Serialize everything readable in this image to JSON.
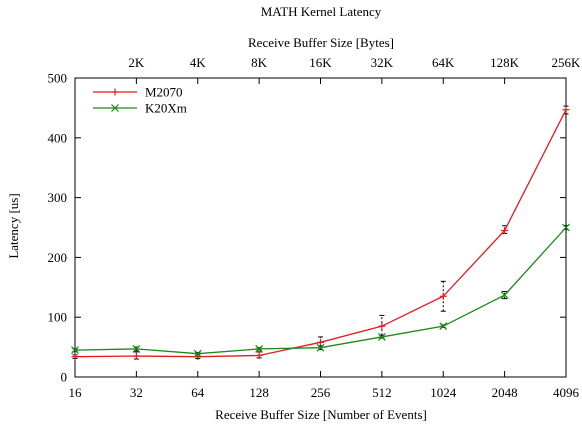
{
  "chart_data": {
    "type": "line",
    "title": "MATH Kernel Latency",
    "xlabel": "Receive Buffer Size [Number of Events]",
    "x2label": "Receive Buffer Size [Bytes]",
    "ylabel": "Latency [us]",
    "x_scale": "log2",
    "ylim": [
      0,
      500
    ],
    "y_ticks": [
      0,
      100,
      200,
      300,
      400,
      500
    ],
    "categories": [
      "16",
      "32",
      "64",
      "128",
      "256",
      "512",
      "1024",
      "2048",
      "4096"
    ],
    "x": [
      16,
      32,
      64,
      128,
      256,
      512,
      1024,
      2048,
      4096
    ],
    "top_ticks": [
      {
        "x": 32,
        "label": "2K"
      },
      {
        "x": 64,
        "label": "4K"
      },
      {
        "x": 128,
        "label": "8K"
      },
      {
        "x": 256,
        "label": "16K"
      },
      {
        "x": 512,
        "label": "32K"
      },
      {
        "x": 1024,
        "label": "64K"
      },
      {
        "x": 2048,
        "label": "128K"
      },
      {
        "x": 4096,
        "label": "256K"
      }
    ],
    "legend_position": "top-left",
    "grid": false,
    "series": [
      {
        "name": "M2070",
        "color": "#e41a1c",
        "marker": "plus",
        "values": [
          34,
          35,
          34,
          36,
          58,
          85,
          135,
          245,
          447
        ],
        "err_low": [
          31,
          30,
          31,
          32,
          52,
          70,
          110,
          240,
          440
        ],
        "err_high": [
          37,
          42,
          39,
          42,
          67,
          103,
          160,
          253,
          453
        ]
      },
      {
        "name": "K20Xm",
        "color": "#1a8a1a",
        "marker": "x",
        "values": [
          45,
          47,
          39,
          47,
          49,
          67,
          85,
          137,
          250
        ],
        "err_low": [
          43,
          44,
          37,
          45,
          46,
          65,
          83,
          131,
          247
        ],
        "err_high": [
          47,
          50,
          41,
          49,
          52,
          69,
          87,
          143,
          253
        ]
      }
    ]
  }
}
